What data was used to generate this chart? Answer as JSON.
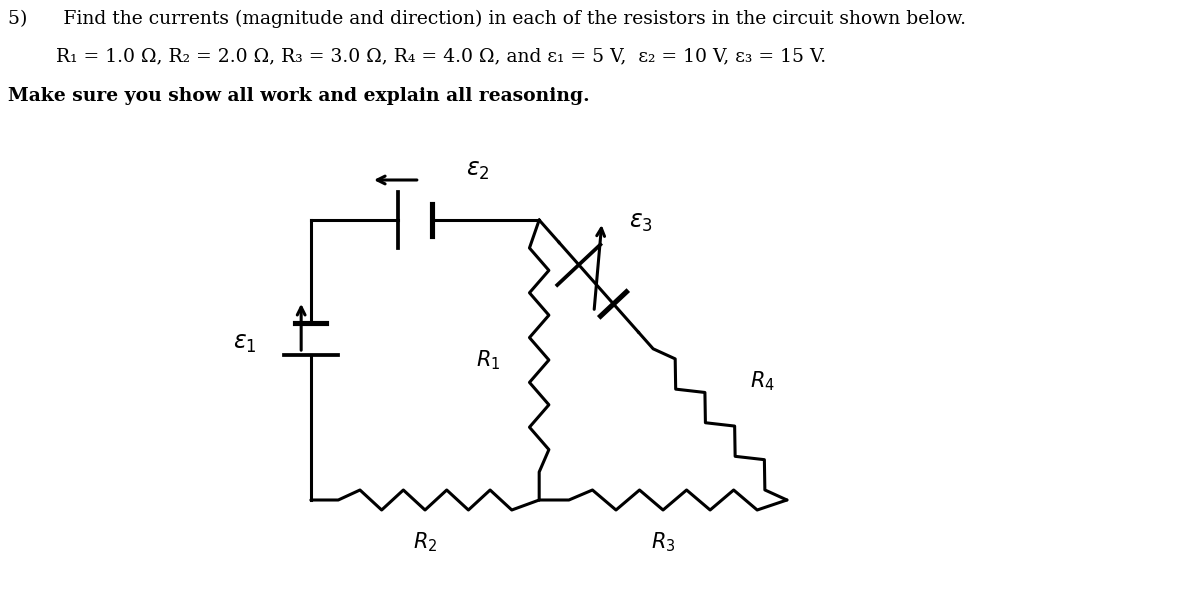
{
  "title_line1": "5)      Find the currents (magnitude and direction) in each of the resistors in the circuit shown below.",
  "title_line2": "        R₁ = 1.0 Ω, R₂ = 2.0 Ω, R₃ = 3.0 Ω, R₄ = 4.0 Ω, and ε₁ = 5 V,  ε₂ = 10 V, ε₃ = 15 V.",
  "title_line3": "Make sure you show all work and explain all reasoning.",
  "bg_color": "#ffffff",
  "line_color": "#000000",
  "text_color": "#000000",
  "lw": 2.2,
  "font_size_text": 13.5,
  "font_size_labels": 15
}
